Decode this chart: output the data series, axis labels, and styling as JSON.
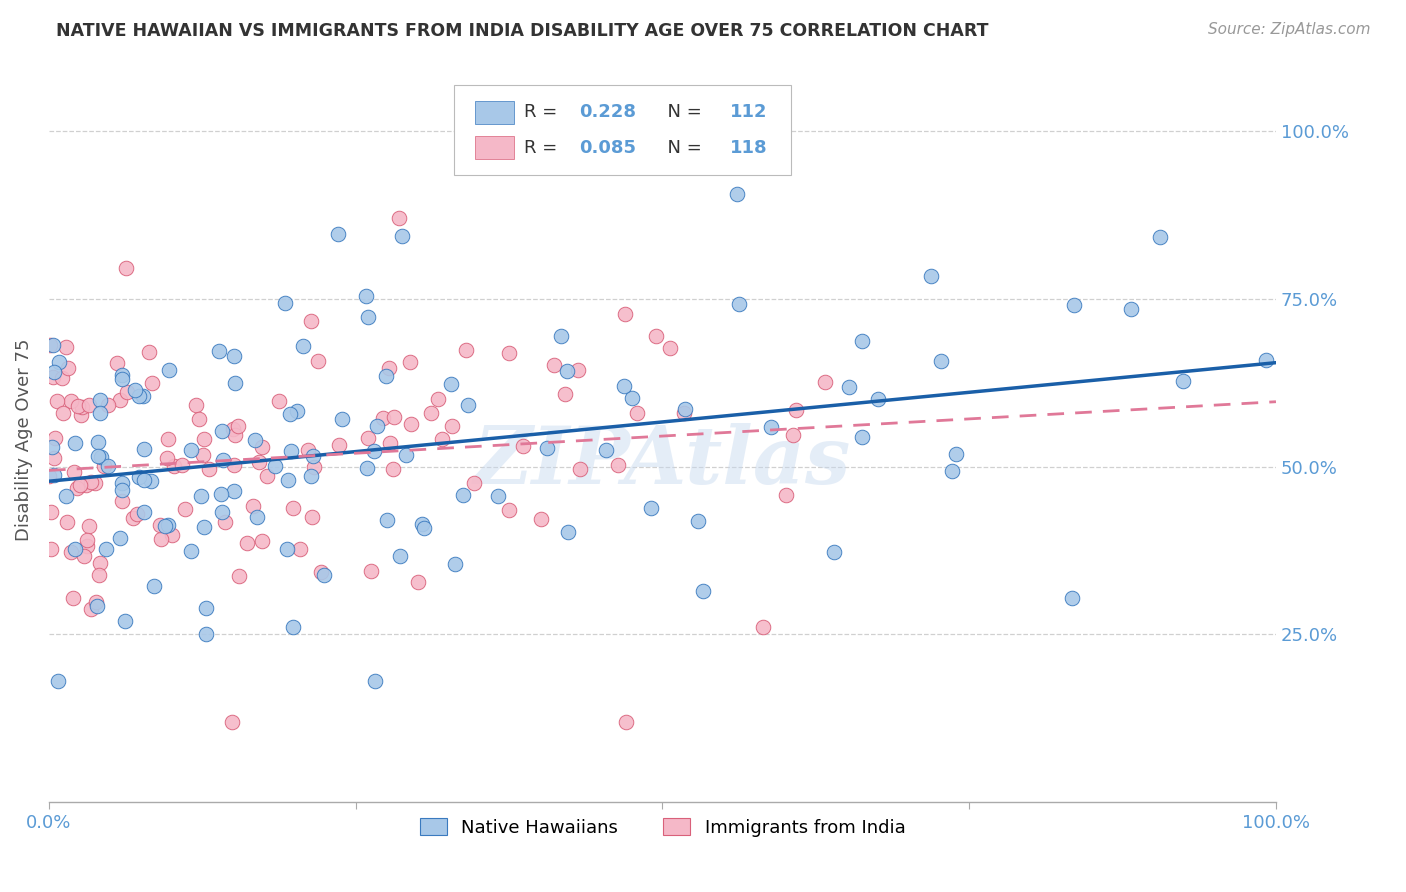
{
  "title": "NATIVE HAWAIIAN VS IMMIGRANTS FROM INDIA DISABILITY AGE OVER 75 CORRELATION CHART",
  "source": "Source: ZipAtlas.com",
  "ylabel": "Disability Age Over 75",
  "ytick_vals": [
    0.25,
    0.5,
    0.75,
    1.0
  ],
  "ytick_labels": [
    "25.0%",
    "50.0%",
    "75.0%",
    "100.0%"
  ],
  "legend_bottom": [
    "Native Hawaiians",
    "Immigrants from India"
  ],
  "watermark": "ZIPAtlas",
  "blue_color": "#a8c8e8",
  "blue_edge_color": "#3a7abf",
  "pink_color": "#f5b8c8",
  "pink_edge_color": "#d9607a",
  "blue_line_color": "#1a5fa8",
  "pink_line_color": "#e07898",
  "background_color": "#ffffff",
  "grid_color": "#d0d0d0",
  "title_color": "#333333",
  "right_axis_color": "#5b9bd5",
  "R_blue": 0.228,
  "N_blue": 112,
  "R_pink": 0.085,
  "N_pink": 118,
  "ylim": [
    0.0,
    1.08
  ],
  "xlim": [
    0.0,
    1.0
  ]
}
